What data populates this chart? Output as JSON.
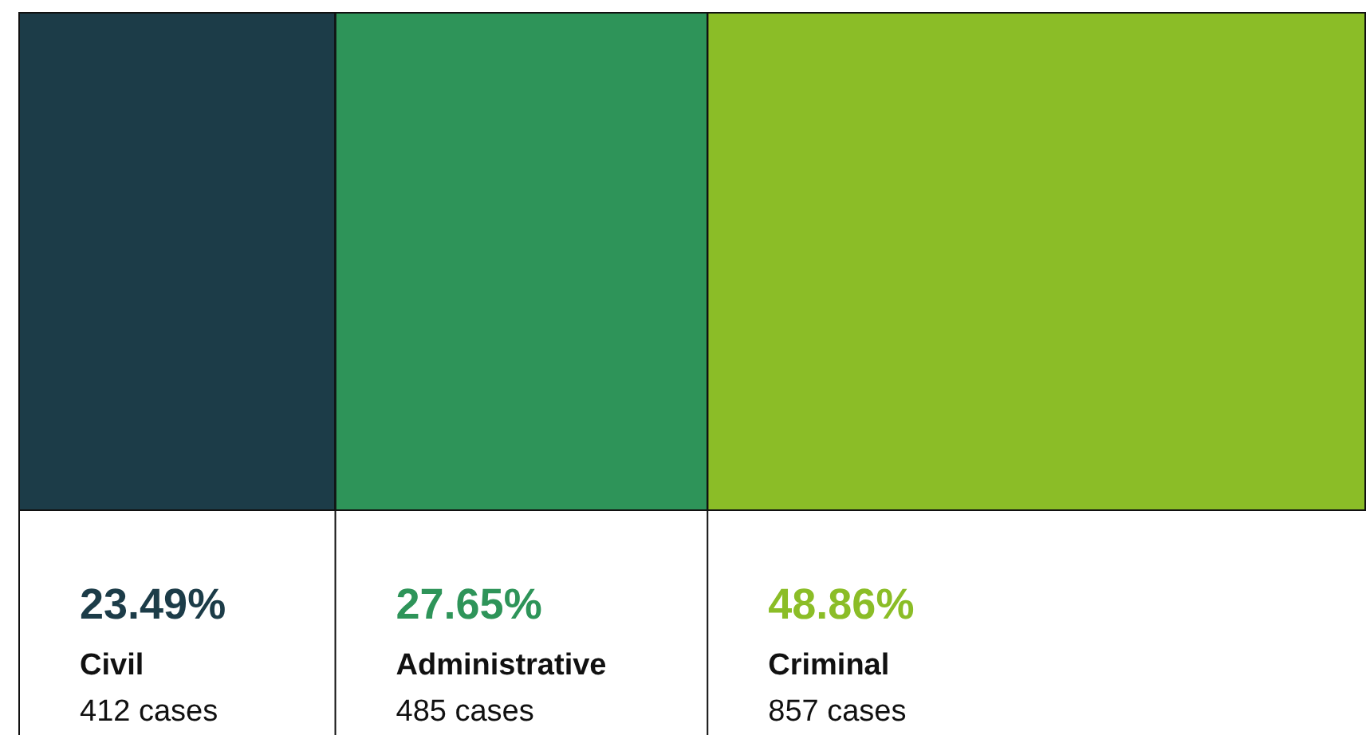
{
  "chart_data": {
    "type": "other",
    "categories": [
      "Civil",
      "Administrative",
      "Criminal"
    ],
    "values": [
      23.49,
      27.65,
      48.86
    ],
    "colors": [
      "#1c3c48",
      "#2e9459",
      "#8bbd27"
    ],
    "value_labels": [
      "23.49%",
      "27.65%",
      "48.86%"
    ],
    "annotations": [
      "412 cases",
      "485 cases",
      "857 cases"
    ]
  }
}
